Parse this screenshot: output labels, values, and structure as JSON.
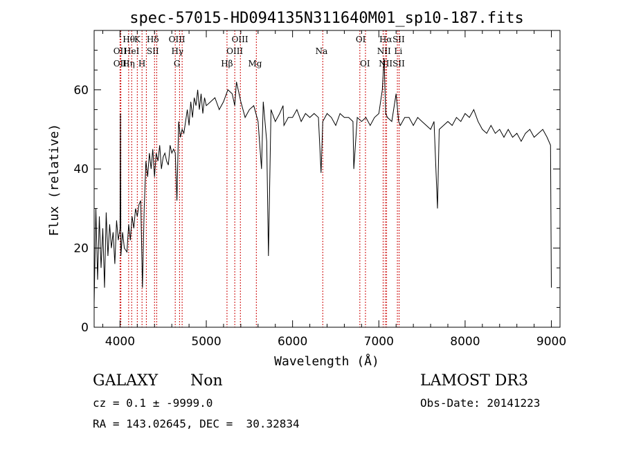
{
  "chart_data": {
    "type": "line",
    "title": "spec-57015-HD094135N311640M01_sp10-187.fits",
    "xlabel": "Wavelength (Å)",
    "ylabel": "Flux (relative)",
    "xlim": [
      3700,
      9100
    ],
    "ylim": [
      0,
      75
    ],
    "x_ticks": [
      4000,
      5000,
      6000,
      7000,
      8000,
      9000
    ],
    "y_ticks": [
      0,
      20,
      40,
      60
    ],
    "grid": false,
    "series": [
      {
        "x": [
          3700,
          3720,
          3740,
          3760,
          3780,
          3800,
          3820,
          3840,
          3860,
          3880,
          3900,
          3920,
          3940,
          3960,
          3980,
          4000,
          4005,
          4010,
          4030,
          4050,
          4080,
          4100,
          4120,
          4140,
          4160,
          4180,
          4200,
          4220,
          4240,
          4260,
          4280,
          4300,
          4320,
          4340,
          4360,
          4380,
          4400,
          4420,
          4440,
          4460,
          4480,
          4500,
          4520,
          4540,
          4560,
          4580,
          4600,
          4620,
          4640,
          4660,
          4680,
          4700,
          4720,
          4740,
          4760,
          4780,
          4800,
          4820,
          4840,
          4860,
          4880,
          4900,
          4920,
          4940,
          4960,
          4980,
          5000,
          5050,
          5100,
          5150,
          5200,
          5250,
          5300,
          5330,
          5350,
          5400,
          5450,
          5500,
          5550,
          5600,
          5640,
          5660,
          5700,
          5720,
          5750,
          5800,
          5850,
          5890,
          5900,
          5950,
          6000,
          6050,
          6100,
          6150,
          6200,
          6250,
          6300,
          6330,
          6350,
          6400,
          6450,
          6500,
          6550,
          6600,
          6650,
          6700,
          6710,
          6750,
          6800,
          6850,
          6900,
          6950,
          7000,
          7040,
          7060,
          7080,
          7100,
          7150,
          7200,
          7230,
          7250,
          7300,
          7350,
          7400,
          7450,
          7500,
          7550,
          7600,
          7640,
          7680,
          7700,
          7750,
          7800,
          7850,
          7900,
          7950,
          8000,
          8050,
          8100,
          8150,
          8200,
          8250,
          8300,
          8350,
          8400,
          8450,
          8500,
          8550,
          8600,
          8650,
          8700,
          8750,
          8800,
          8850,
          8900,
          8950,
          8990,
          9000
        ],
        "y": [
          6,
          30,
          12,
          28,
          15,
          25,
          10,
          29,
          18,
          26,
          20,
          24,
          16,
          27,
          22,
          25,
          54,
          18,
          24,
          20,
          19,
          26,
          22,
          28,
          25,
          30,
          28,
          31,
          32,
          10,
          30,
          42,
          38,
          44,
          40,
          45,
          38,
          44,
          42,
          46,
          40,
          43,
          44,
          42,
          41,
          46,
          44,
          45,
          44,
          32,
          52,
          48,
          50,
          49,
          52,
          55,
          51,
          57,
          53,
          58,
          56,
          60,
          55,
          59,
          54,
          58,
          56,
          57,
          58,
          55,
          57,
          60,
          59,
          56,
          62,
          57,
          53,
          55,
          56,
          52,
          40,
          57,
          47,
          18,
          55,
          52,
          54,
          56,
          51,
          53,
          53,
          55,
          52,
          54,
          53,
          54,
          53,
          39,
          52,
          54,
          53,
          51,
          54,
          53,
          53,
          52,
          40,
          53,
          52,
          53,
          51,
          53,
          54,
          60,
          68,
          54,
          53,
          52,
          59,
          52,
          51,
          53,
          53,
          51,
          53,
          52,
          51,
          50,
          52,
          30,
          50,
          51,
          52,
          51,
          53,
          52,
          54,
          53,
          55,
          52,
          50,
          49,
          51,
          49,
          50,
          48,
          50,
          48,
          49,
          47,
          49,
          50,
          48,
          49,
          50,
          48,
          46,
          10
        ]
      }
    ],
    "line_labels": [
      {
        "text": "Hθ",
        "x": 4102,
        "row": 0
      },
      {
        "text": "K",
        "x": 4200,
        "row": 0
      },
      {
        "text": "Hδ",
        "x": 4380,
        "row": 0
      },
      {
        "text": "OIII",
        "x": 4660,
        "row": 0
      },
      {
        "text": "OIII",
        "x": 5390,
        "row": 0
      },
      {
        "text": "OI",
        "x": 6790,
        "row": 0
      },
      {
        "text": "Hα",
        "x": 7080,
        "row": 0
      },
      {
        "text": "SII",
        "x": 7230,
        "row": 0
      },
      {
        "text": "OII",
        "x": 4000,
        "row": 1
      },
      {
        "text": "HeI",
        "x": 4135,
        "row": 1
      },
      {
        "text": "SII",
        "x": 4380,
        "row": 1
      },
      {
        "text": "Hγ",
        "x": 4665,
        "row": 1
      },
      {
        "text": "OIII",
        "x": 5330,
        "row": 1
      },
      {
        "text": "Na",
        "x": 6335,
        "row": 1
      },
      {
        "text": "NII",
        "x": 7060,
        "row": 1
      },
      {
        "text": "Li",
        "x": 7225,
        "row": 1
      },
      {
        "text": "OII",
        "x": 4000,
        "row": 2
      },
      {
        "text": "Hη",
        "x": 4100,
        "row": 2
      },
      {
        "text": "H",
        "x": 4255,
        "row": 2
      },
      {
        "text": "G",
        "x": 4660,
        "row": 2
      },
      {
        "text": "Hβ",
        "x": 5240,
        "row": 2
      },
      {
        "text": "Mg",
        "x": 5565,
        "row": 2
      },
      {
        "text": "OI",
        "x": 6840,
        "row": 2
      },
      {
        "text": "NIISII",
        "x": 7150,
        "row": 2
      }
    ],
    "line_positions": [
      4000,
      4010,
      4100,
      4135,
      4200,
      4255,
      4305,
      4400,
      4425,
      4640,
      4690,
      4720,
      5240,
      5330,
      5395,
      5580,
      6350,
      6780,
      6845,
      7050,
      7075,
      7090,
      7215,
      7235
    ]
  },
  "info": {
    "class": "GALAXY",
    "subclass": "Non",
    "survey": "LAMOST DR3",
    "cz": "cz = 0.1 ± -9999.0",
    "obs_date": "Obs-Date: 20141223",
    "radec": "RA = 143.02645, DEC =  30.32834"
  },
  "colors": {
    "spectrum": "#000000",
    "line_markers": "#cc0000",
    "background": "#ffffff"
  }
}
